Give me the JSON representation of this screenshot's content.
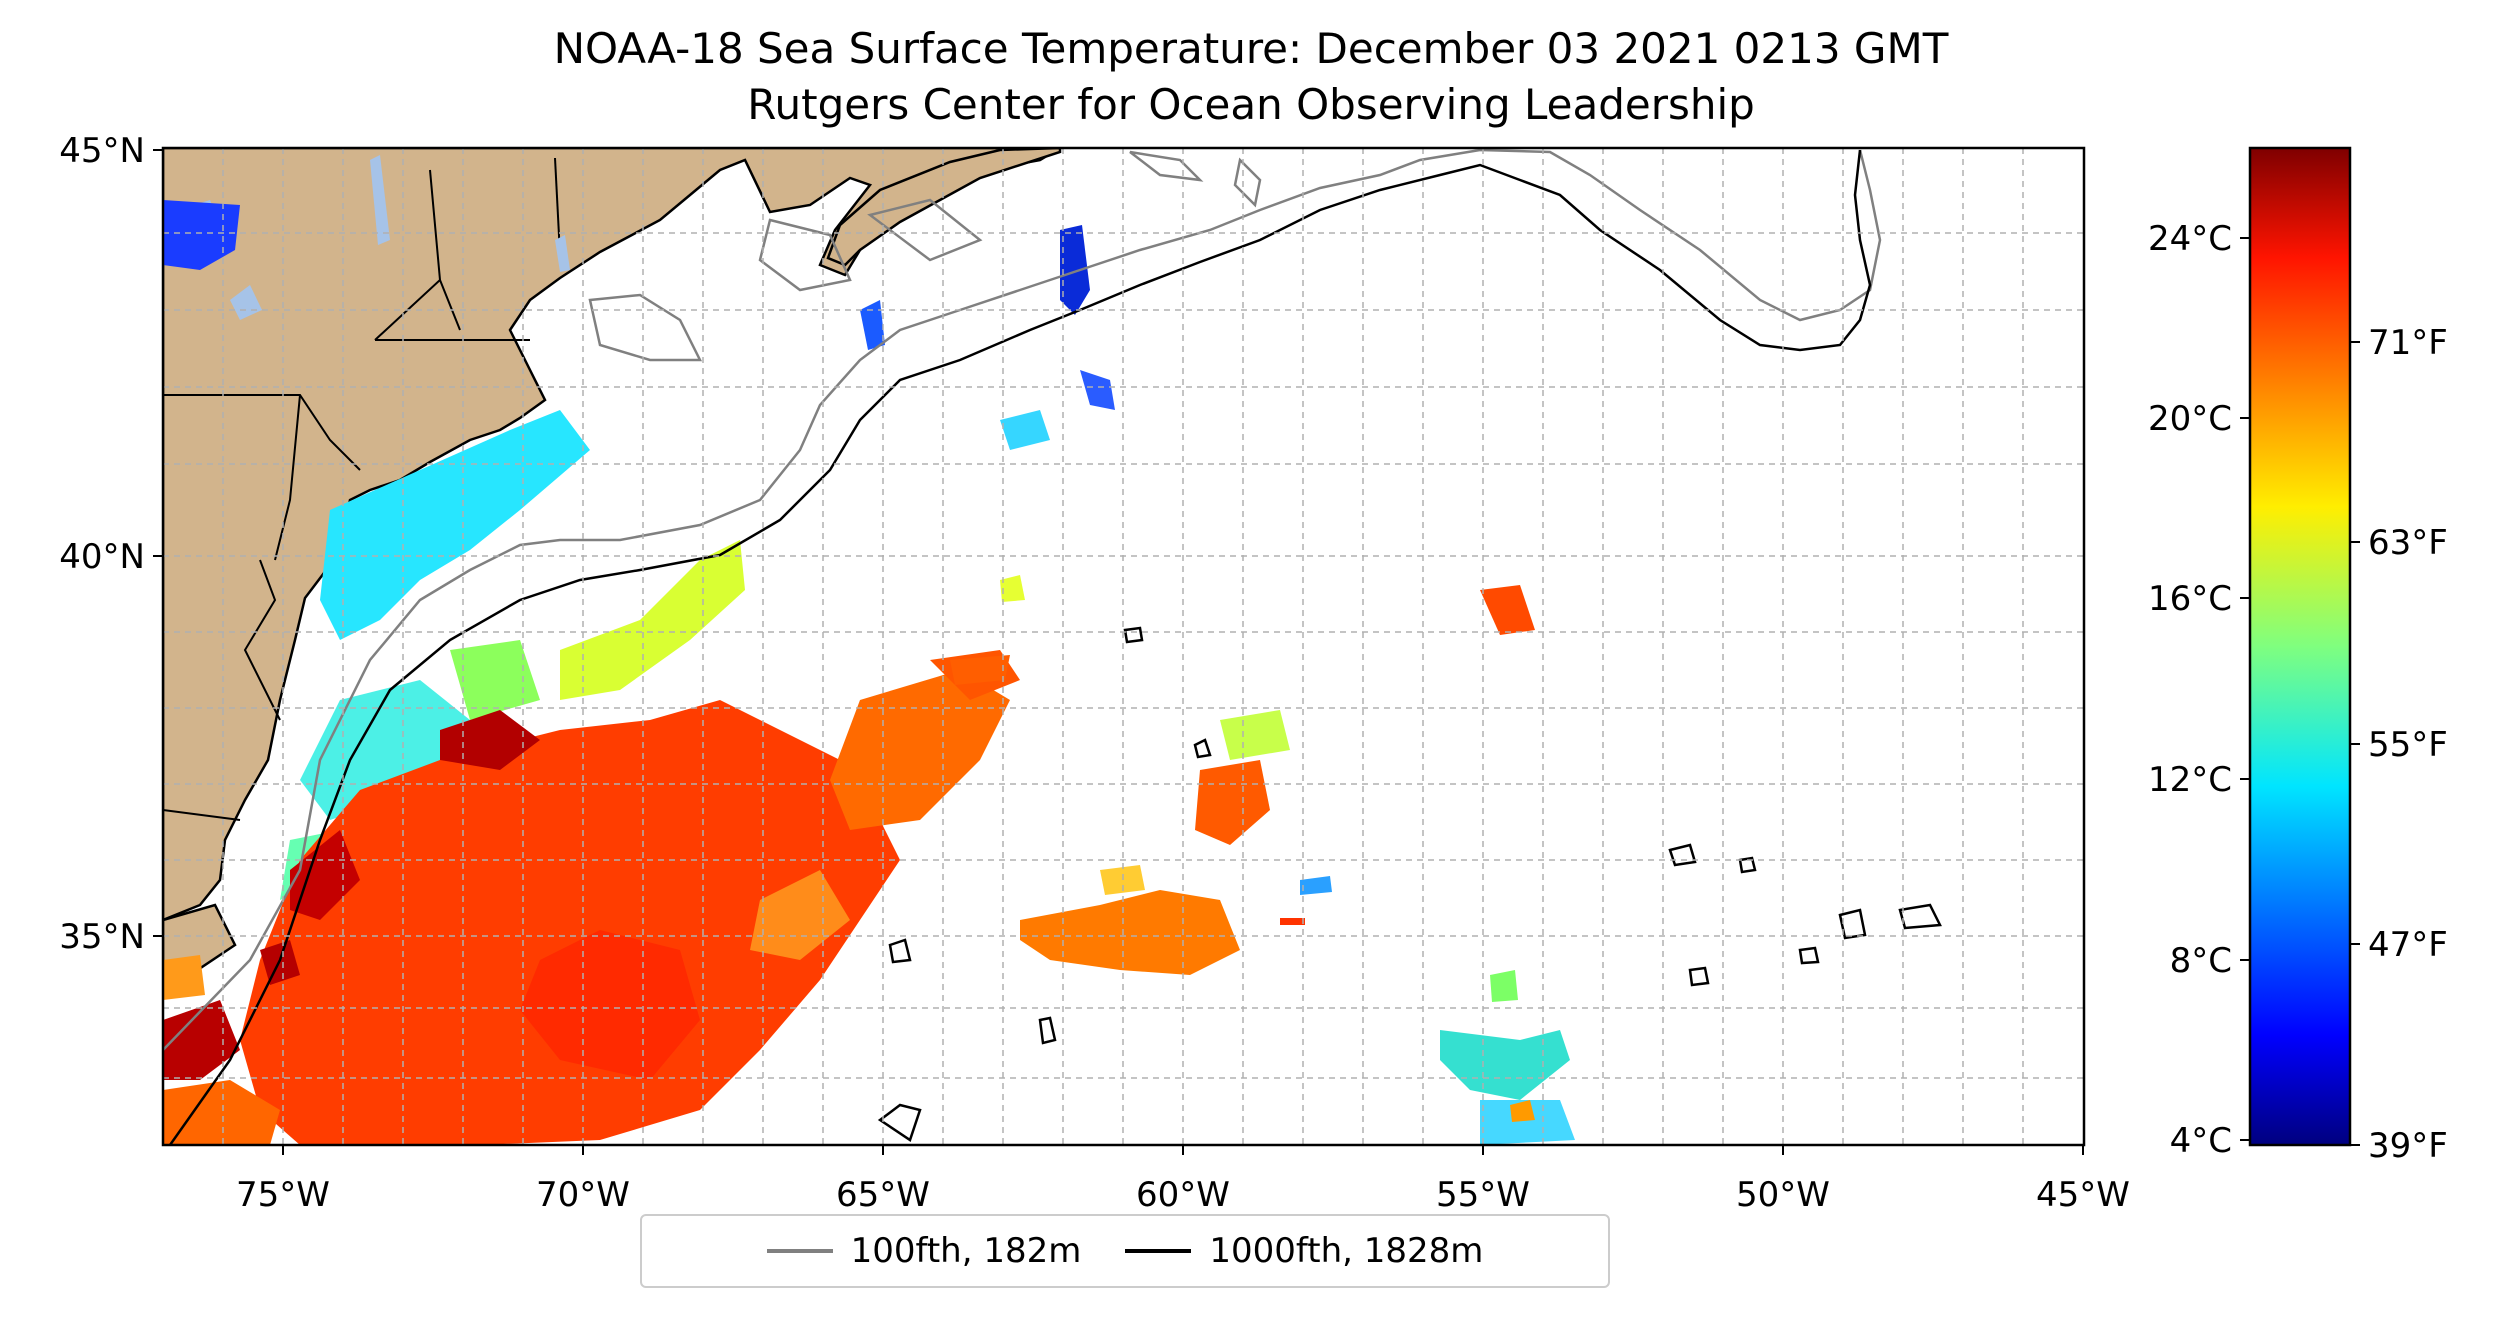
{
  "title": "NOAA-18 Sea Surface Temperature: December 03 2021 0213 GMT",
  "subtitle": "Rutgers Center for Ocean Observing Leadership",
  "map": {
    "lat_range": [
      32.5,
      45
    ],
    "lon_range": [
      -77,
      -45
    ],
    "lat_ticks": [
      "45°N",
      "40°N",
      "35°N"
    ],
    "lon_ticks": [
      "75°W",
      "70°W",
      "65°W",
      "60°W",
      "55°W",
      "50°W",
      "45°W"
    ],
    "land_color": "#d2b48c",
    "lake_color": "#a6c3e8"
  },
  "colorbar": {
    "colormap": "jet",
    "celsius_ticks": [
      "24°C",
      "20°C",
      "16°C",
      "12°C",
      "8°C",
      "4°C"
    ],
    "fahrenheit_ticks": [
      "71°F",
      "63°F",
      "55°F",
      "47°F",
      "39°F"
    ]
  },
  "legend": {
    "items": [
      {
        "label": "100fth, 182m",
        "color": "#808080"
      },
      {
        "label": "1000fth, 1828m",
        "color": "#000000"
      }
    ]
  }
}
